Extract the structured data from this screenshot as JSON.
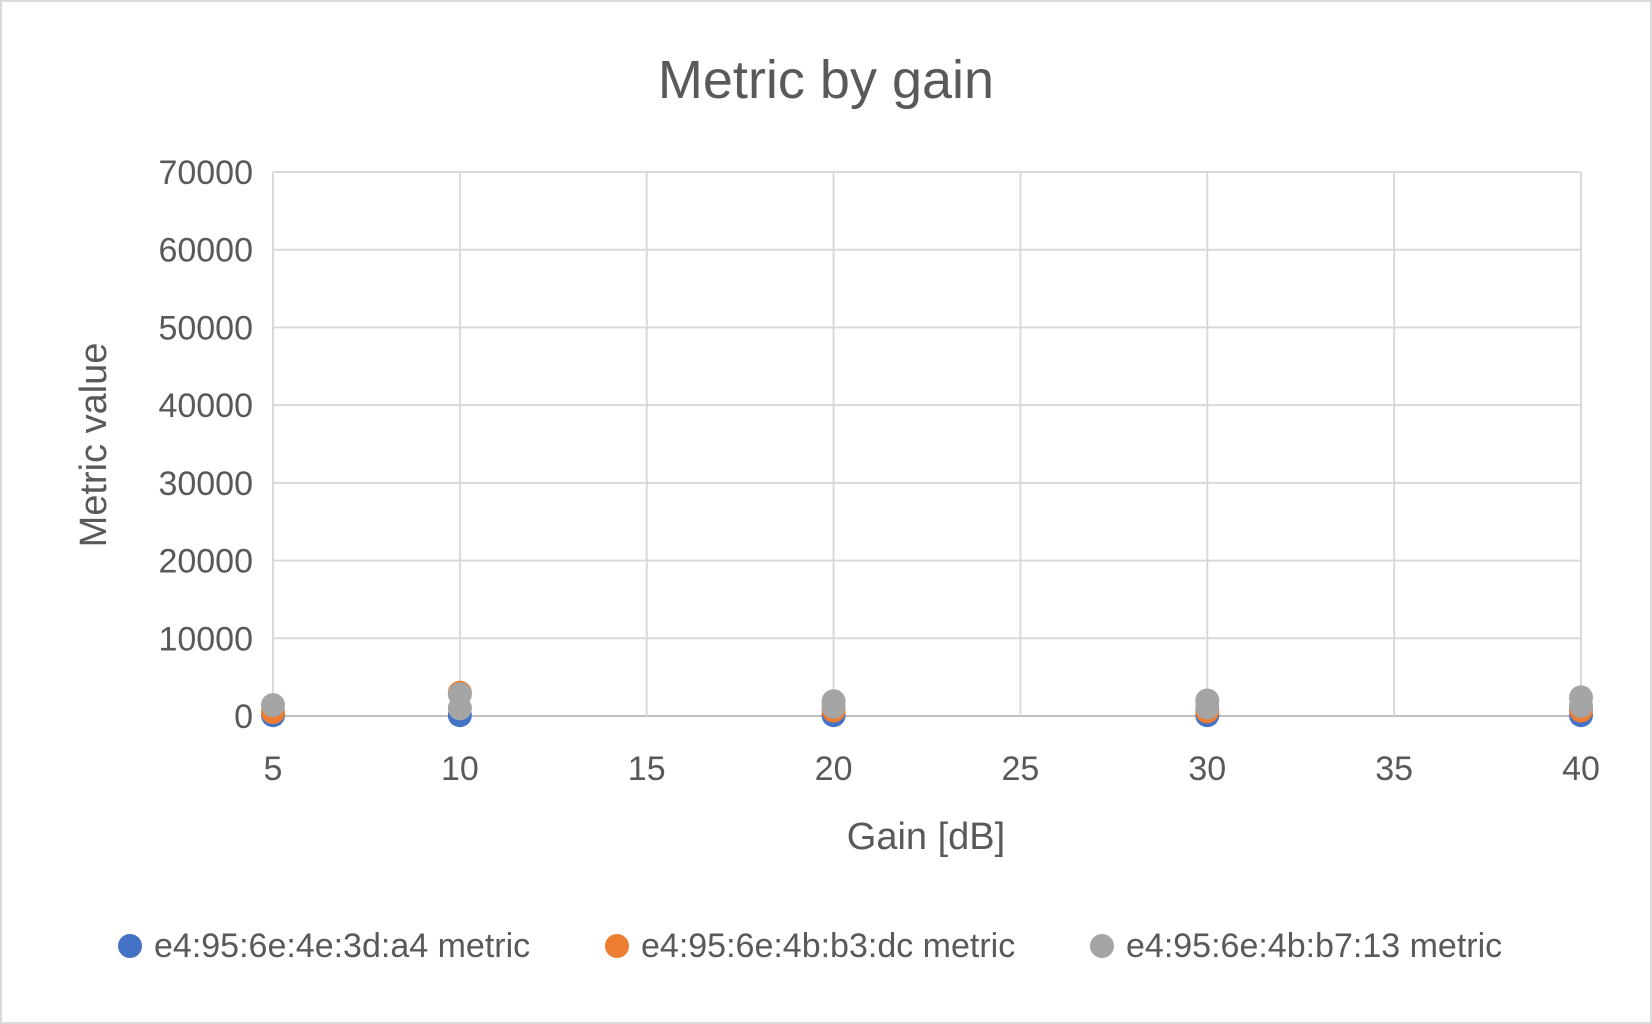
{
  "chart_data": {
    "type": "scatter",
    "title": "Metric by gain",
    "xlabel": "Gain [dB]",
    "ylabel": "Metric value",
    "xlim": [
      5,
      40
    ],
    "ylim": [
      0,
      70000
    ],
    "xticks": [
      5,
      10,
      15,
      20,
      25,
      30,
      35,
      40
    ],
    "yticks": [
      0,
      10000,
      20000,
      30000,
      40000,
      50000,
      60000,
      70000
    ],
    "grid": true,
    "legend_position": "bottom",
    "series": [
      {
        "name": "e4:95:6e:4e:3d:a4 metric",
        "color": "#4472C4",
        "points": [
          {
            "x": 5,
            "y": 100
          },
          {
            "x": 10,
            "y": 100
          },
          {
            "x": 20,
            "y": 100
          },
          {
            "x": 30,
            "y": 100
          },
          {
            "x": 40,
            "y": 100
          }
        ]
      },
      {
        "name": "e4:95:6e:4b:b3:dc metric",
        "color": "#ED7D31",
        "points": [
          {
            "x": 5,
            "y": 500
          },
          {
            "x": 10,
            "y": 3000
          },
          {
            "x": 20,
            "y": 700
          },
          {
            "x": 30,
            "y": 600
          },
          {
            "x": 40,
            "y": 700
          }
        ]
      },
      {
        "name": "e4:95:6e:4b:b7:13 metric",
        "color": "#A5A5A5",
        "points": [
          {
            "x": 5,
            "y": 1400
          },
          {
            "x": 10,
            "y": 1000
          },
          {
            "x": 10,
            "y": 2800
          },
          {
            "x": 20,
            "y": 1900
          },
          {
            "x": 20,
            "y": 1200
          },
          {
            "x": 30,
            "y": 2000
          },
          {
            "x": 30,
            "y": 1100
          },
          {
            "x": 40,
            "y": 2400
          },
          {
            "x": 40,
            "y": 1300
          }
        ]
      }
    ]
  }
}
